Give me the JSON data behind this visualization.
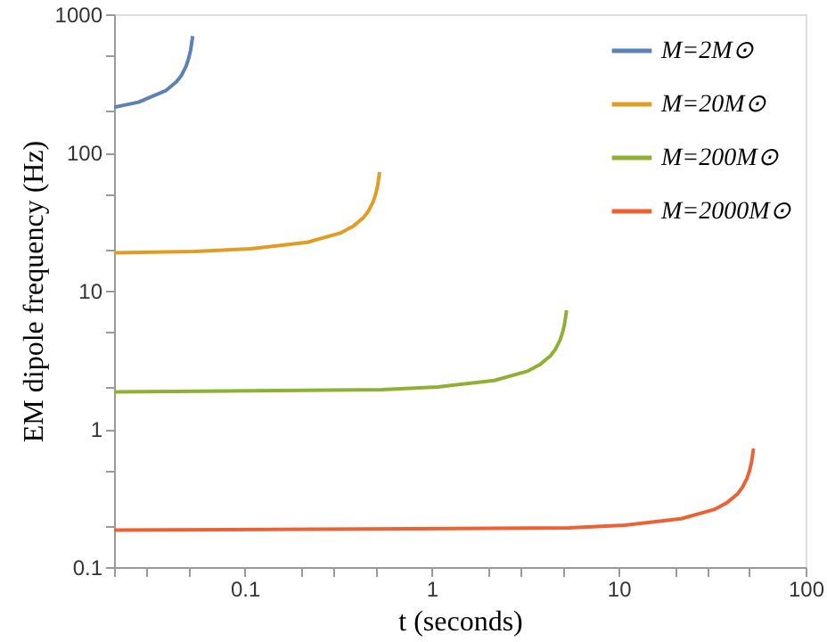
{
  "chart_data": {
    "type": "line",
    "xlabel": "t  (seconds)",
    "ylabel": "EM  dipole  frequency  (Hz)",
    "log": "xy",
    "grid": false,
    "legend": "top right",
    "line_style": "solid",
    "marker": "none",
    "xlim": [
      0.02,
      100
    ],
    "ylim": [
      0.1,
      1000
    ],
    "xticks": [
      {
        "value": 0.02,
        "label": null
      },
      {
        "value": 0.03,
        "label": null
      },
      {
        "value": 0.05,
        "label": null
      },
      0.1,
      {
        "value": 0.2,
        "label": null
      },
      {
        "value": 0.3,
        "label": null
      },
      {
        "value": 0.5,
        "label": null
      },
      1,
      {
        "value": 2,
        "label": null
      },
      {
        "value": 3,
        "label": null
      },
      {
        "value": 5,
        "label": null
      },
      10,
      {
        "value": 20,
        "label": null
      },
      {
        "value": 30,
        "label": null
      },
      {
        "value": 50,
        "label": null
      },
      100
    ],
    "yticks": [
      0.1,
      {
        "value": 0.2,
        "label": null
      },
      {
        "value": 0.5,
        "label": null
      },
      1,
      {
        "value": 2,
        "label": null
      },
      {
        "value": 5,
        "label": null
      },
      10,
      {
        "value": 20,
        "label": null
      },
      {
        "value": 50,
        "label": null
      },
      100,
      {
        "value": 200,
        "label": null
      },
      {
        "value": 500,
        "label": null
      },
      1000
    ],
    "series": [
      {
        "name": "M=2M⊙",
        "color": "#5e81b5",
        "x": [
          0.02,
          0.027,
          0.0378,
          0.0432,
          0.0459,
          0.0486,
          0.0502,
          0.0513,
          0.0518,
          0.0524,
          0.0526
        ],
        "values": [
          212,
          231,
          280,
          326,
          362,
          422,
          483,
          547,
          595,
          663,
          694
        ]
      },
      {
        "name": "M=20M⊙",
        "color": "#e19c24",
        "x": [
          0.02,
          0.054,
          0.108,
          0.216,
          0.324,
          0.378,
          0.432,
          0.459,
          0.486,
          0.502,
          0.513,
          0.518,
          0.524,
          0.526
        ],
        "values": [
          18.8,
          19.2,
          20.1,
          22.4,
          26.1,
          29.1,
          33.8,
          37.7,
          43.9,
          50.2,
          56.9,
          61.9,
          68.9,
          72.2
        ]
      },
      {
        "name": "M=200M⊙",
        "color": "#8fb032",
        "x": [
          0.02,
          0.54,
          1.08,
          2.16,
          3.24,
          3.78,
          4.32,
          4.59,
          4.86,
          5.02,
          5.13,
          5.18,
          5.24,
          5.26
        ],
        "values": [
          1.85,
          1.92,
          2.01,
          2.24,
          2.61,
          2.91,
          3.38,
          3.77,
          4.39,
          5.02,
          5.69,
          6.19,
          6.89,
          7.22
        ]
      },
      {
        "name": "M=2000M⊙",
        "color": "#eb6235",
        "x": [
          0.02,
          5.4,
          10.8,
          21.6,
          32.4,
          37.8,
          43.2,
          45.9,
          48.6,
          50.2,
          51.3,
          51.8,
          52.4,
          52.6
        ],
        "values": [
          0.185,
          0.192,
          0.201,
          0.224,
          0.261,
          0.291,
          0.338,
          0.377,
          0.439,
          0.502,
          0.569,
          0.619,
          0.689,
          0.722
        ]
      }
    ]
  }
}
